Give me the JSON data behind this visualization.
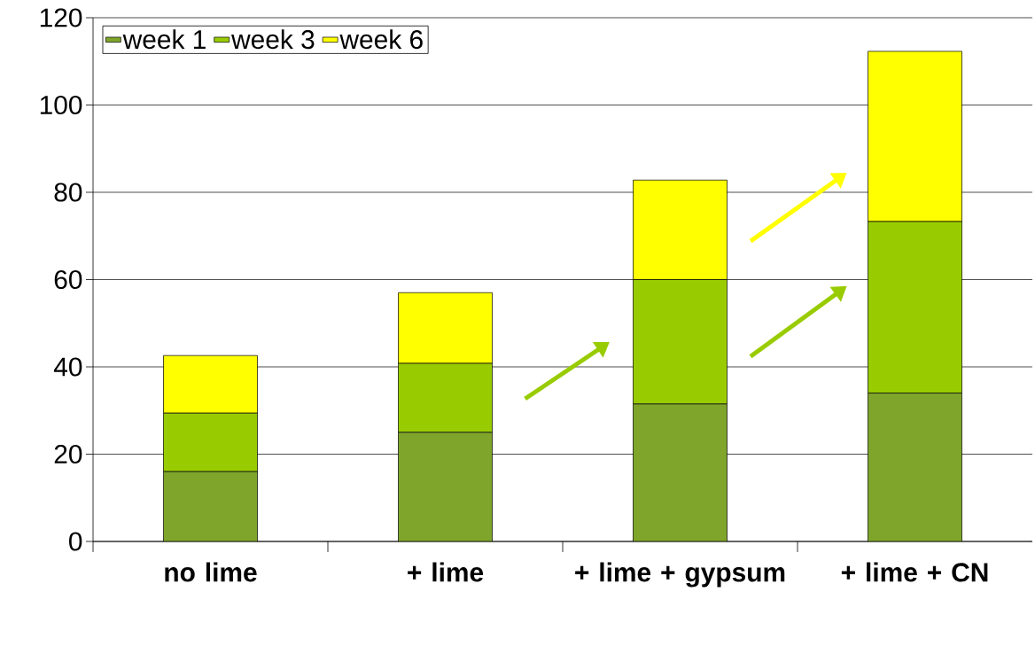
{
  "chart_data": {
    "type": "bar",
    "stacked": true,
    "categories": [
      "no lime",
      "+ lime",
      "+ lime + gypsum",
      "+ lime + CN"
    ],
    "series": [
      {
        "name": "week 1",
        "color": "#7fa52b",
        "values": [
          16,
          25,
          31.5,
          34
        ]
      },
      {
        "name": "week 3",
        "color": "#99cc00",
        "values": [
          13.4,
          15.8,
          28.5,
          39.3
        ]
      },
      {
        "name": "week 6",
        "color": "#ffff00",
        "values": [
          13.2,
          16.2,
          22.8,
          39
        ]
      }
    ],
    "ylim": [
      0,
      120
    ],
    "yticks": [
      0,
      20,
      40,
      60,
      80,
      100,
      120
    ],
    "grid": "y",
    "legend": "top left"
  }
}
